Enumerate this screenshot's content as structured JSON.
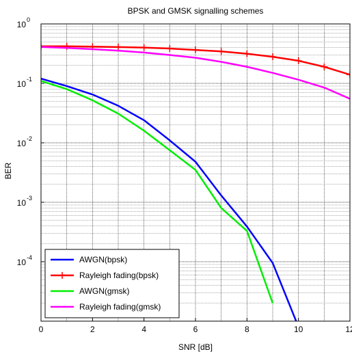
{
  "chart_data": {
    "type": "line",
    "title": "BPSK and GMSK signalling schemes",
    "xlabel": "SNR [dB]",
    "ylabel": "BER",
    "xlim": [
      0,
      12
    ],
    "ylim": [
      1e-05,
      1
    ],
    "yscale": "log",
    "grid": true,
    "legend_position": "bottom-left",
    "x_ticks": [
      0,
      2,
      4,
      6,
      8,
      10,
      12
    ],
    "y_ticks": [
      {
        "value": 1,
        "base": "10",
        "exp": "0"
      },
      {
        "value": 0.1,
        "base": "10",
        "exp": "-1"
      },
      {
        "value": 0.01,
        "base": "10",
        "exp": "-2"
      },
      {
        "value": 0.001,
        "base": "10",
        "exp": "-3"
      },
      {
        "value": 0.0001,
        "base": "10",
        "exp": "-4"
      }
    ],
    "series": [
      {
        "name": "AWGN(bpsk)",
        "color": "#0000ff",
        "marker": "none",
        "x": [
          0,
          1,
          2,
          3,
          4,
          5,
          6,
          7,
          8,
          9,
          10
        ],
        "y": [
          0.12,
          0.09,
          0.065,
          0.042,
          0.024,
          0.011,
          0.0048,
          0.0013,
          0.00039,
          9.5e-05,
          8e-06
        ]
      },
      {
        "name": "Rayleigh fading(bpsk)",
        "color": "#ff0000",
        "marker": "plus",
        "x": [
          0,
          1,
          2,
          3,
          4,
          5,
          6,
          7,
          8,
          9,
          10,
          11,
          12
        ],
        "y": [
          0.42,
          0.42,
          0.415,
          0.408,
          0.4,
          0.385,
          0.365,
          0.345,
          0.315,
          0.28,
          0.24,
          0.19,
          0.14
        ]
      },
      {
        "name": "AWGN(gmsk)",
        "color": "#00ee00",
        "marker": "none",
        "x": [
          0,
          1,
          2,
          3,
          4,
          5,
          6,
          7,
          8,
          9
        ],
        "y": [
          0.11,
          0.08,
          0.052,
          0.031,
          0.016,
          0.0075,
          0.0035,
          0.0008,
          0.00033,
          2e-05
        ]
      },
      {
        "name": "Rayleigh fading(gmsk)",
        "color": "#ff00ff",
        "marker": "none",
        "x": [
          0,
          1,
          2,
          3,
          4,
          5,
          6,
          7,
          8,
          9,
          10,
          11,
          12
        ],
        "y": [
          0.41,
          0.395,
          0.375,
          0.355,
          0.33,
          0.3,
          0.27,
          0.23,
          0.19,
          0.15,
          0.115,
          0.085,
          0.055
        ]
      }
    ]
  }
}
